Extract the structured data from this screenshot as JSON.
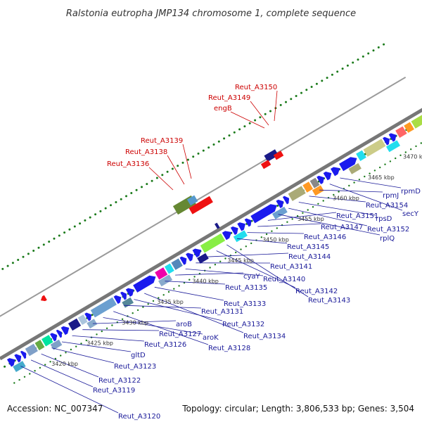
{
  "title": "Ralstonia eutropha JMP134 chromosome 1, complete sequence",
  "footer": {
    "accession": "Accession: NC_007347",
    "topology": "Topology: circular; Length: 3,806,533 bp; Genes: 3,504"
  },
  "colors": {
    "backbone": "#777777",
    "gene_blue": "#1a1aee",
    "label_red": "#cc0000",
    "label_blue": "#1a1a99",
    "tick_green": "#1a7a1a"
  },
  "position_labels": [
    "3420 kbp",
    "3425 kbp",
    "3430 kbp",
    "3435 kbp",
    "3440 kbp",
    "3445 kbp",
    "3450 kbp",
    "3455 kbp",
    "3460 kbp",
    "3465 kbp",
    "3470 kbp"
  ],
  "upper_labels": [
    "Reut_A3136",
    "Reut_A3138",
    "Reut_A3139",
    "engB",
    "Reut_A3149",
    "Reut_A3150"
  ],
  "lower_labels": [
    "Reut_A3120",
    "Reut_A3119",
    "Reut_A3122",
    "Reut_A3123",
    "gltD",
    "Reut_A3126",
    "Reut_A3127",
    "aroB",
    "aroK",
    "Reut_A3128",
    "Reut_A3131",
    "Reut_A3132",
    "Reut_A3134",
    "Reut_A3133",
    "Reut_A3135",
    "cyaY",
    "Reut_A3140",
    "Reut_A3141",
    "Reut_A3144",
    "Reut_A3142",
    "Reut_A3143",
    "Reut_A3145",
    "Reut_A3146",
    "Reut_A3147",
    "Reut_A3151",
    "rplQ",
    "Reut_A3152",
    "rpsD",
    "Reut_A3154",
    "rpmJ",
    "secY",
    "rpmD"
  ]
}
